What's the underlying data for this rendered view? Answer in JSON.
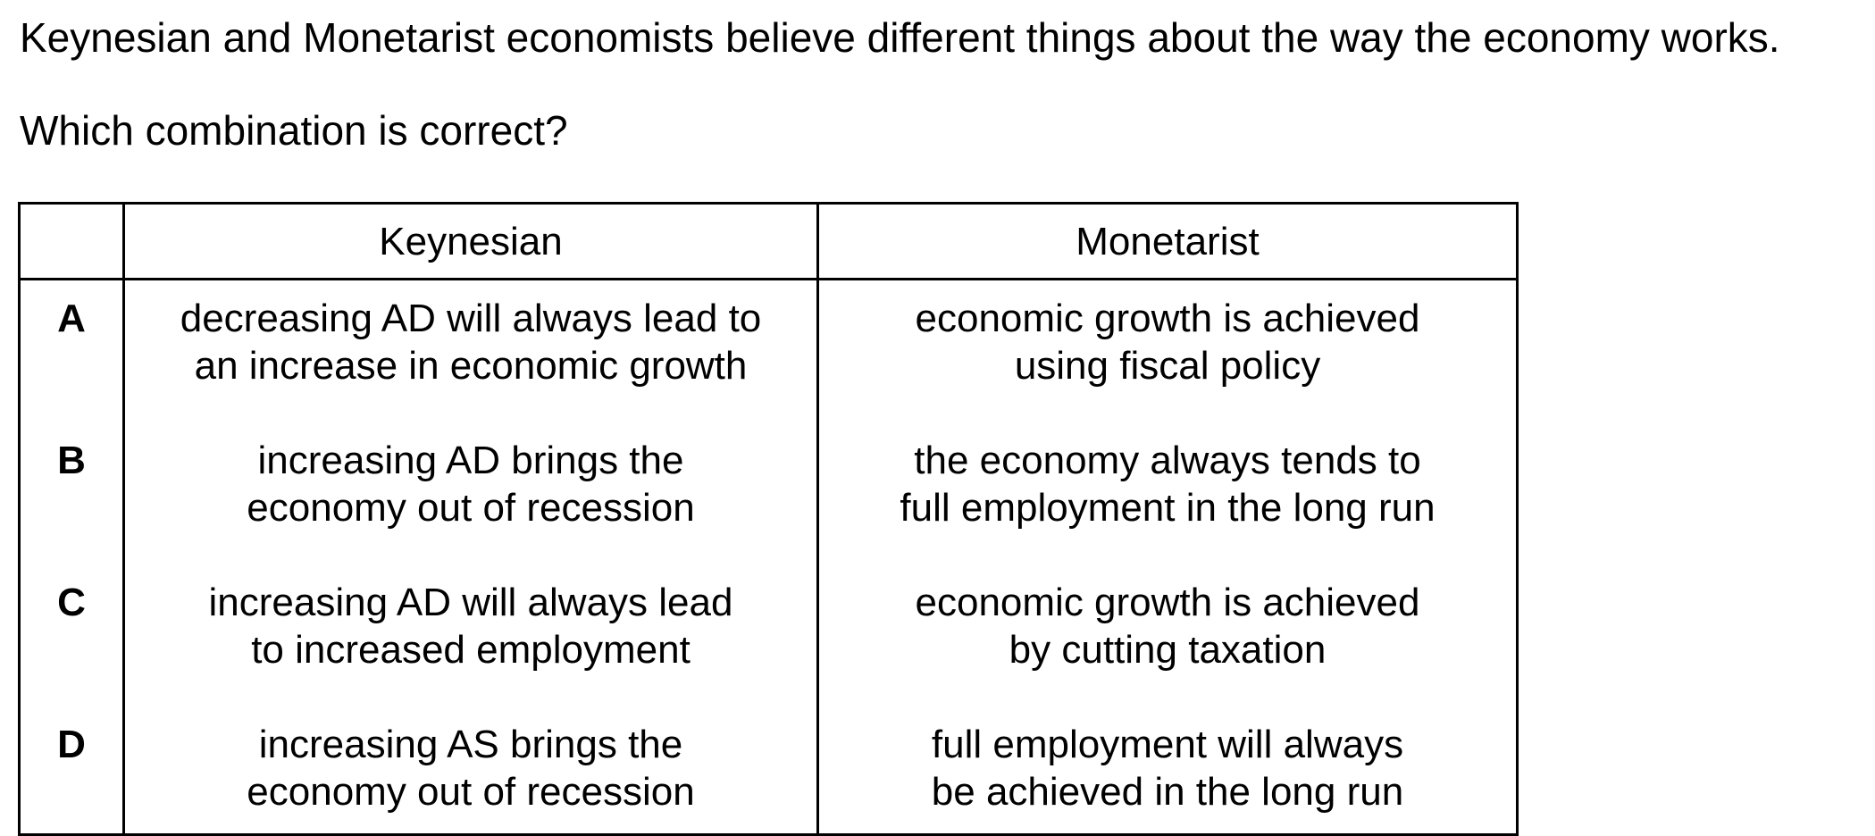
{
  "intro": "Keynesian and Monetarist economists believe different things about the way the economy works.",
  "question": "Which combination is correct?",
  "table": {
    "headers": [
      "",
      "Keynesian",
      "Monetarist"
    ],
    "rows": [
      {
        "letter": "A",
        "keynesian": [
          "decreasing AD will always lead to",
          "an increase in economic growth"
        ],
        "monetarist": [
          "economic growth is achieved",
          "using fiscal policy"
        ]
      },
      {
        "letter": "B",
        "keynesian": [
          "increasing AD brings the",
          "economy out of recession"
        ],
        "monetarist": [
          "the economy always tends to",
          "full employment in the long run"
        ]
      },
      {
        "letter": "C",
        "keynesian": [
          "increasing AD will always lead",
          "to increased employment"
        ],
        "monetarist": [
          "economic growth is achieved",
          "by cutting taxation"
        ]
      },
      {
        "letter": "D",
        "keynesian": [
          "increasing AS brings the",
          "economy out of recession"
        ],
        "monetarist": [
          "full employment will always",
          "be achieved in the long run"
        ]
      }
    ]
  }
}
